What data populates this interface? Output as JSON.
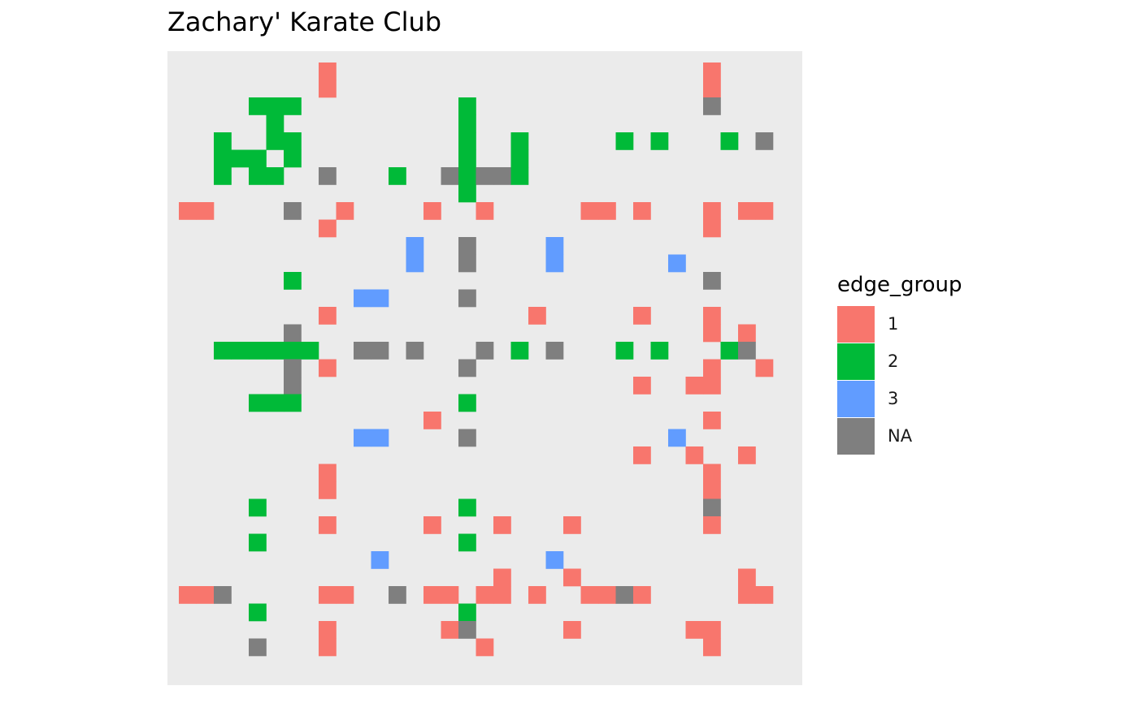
{
  "chart_data": {
    "type": "heatmap",
    "title": "Zachary' Karate Club",
    "xlabel": "",
    "ylabel": "",
    "n": 34,
    "legend": {
      "title": "edge_group",
      "placement": "right",
      "entries": [
        {
          "label": "1",
          "color": "#F8766D"
        },
        {
          "label": "2",
          "color": "#00BA38"
        },
        {
          "label": "3",
          "color": "#619CFF"
        },
        {
          "label": "NA",
          "color": "#7F7F7F"
        }
      ]
    },
    "panel_background": "#EBEBEB",
    "grid": false,
    "cells": [
      {
        "row": 1,
        "col": 9,
        "group": "1"
      },
      {
        "row": 1,
        "col": 31,
        "group": "1"
      },
      {
        "row": 2,
        "col": 9,
        "group": "1"
      },
      {
        "row": 2,
        "col": 31,
        "group": "1"
      },
      {
        "row": 3,
        "col": 5,
        "group": "2"
      },
      {
        "row": 3,
        "col": 6,
        "group": "2"
      },
      {
        "row": 3,
        "col": 7,
        "group": "2"
      },
      {
        "row": 3,
        "col": 17,
        "group": "2"
      },
      {
        "row": 3,
        "col": 31,
        "group": "NA"
      },
      {
        "row": 4,
        "col": 6,
        "group": "2"
      },
      {
        "row": 4,
        "col": 17,
        "group": "2"
      },
      {
        "row": 5,
        "col": 3,
        "group": "2"
      },
      {
        "row": 5,
        "col": 6,
        "group": "2"
      },
      {
        "row": 5,
        "col": 7,
        "group": "2"
      },
      {
        "row": 5,
        "col": 17,
        "group": "2"
      },
      {
        "row": 5,
        "col": 20,
        "group": "2"
      },
      {
        "row": 5,
        "col": 26,
        "group": "2"
      },
      {
        "row": 5,
        "col": 28,
        "group": "2"
      },
      {
        "row": 5,
        "col": 32,
        "group": "2"
      },
      {
        "row": 5,
        "col": 34,
        "group": "NA"
      },
      {
        "row": 6,
        "col": 3,
        "group": "2"
      },
      {
        "row": 6,
        "col": 4,
        "group": "2"
      },
      {
        "row": 6,
        "col": 5,
        "group": "2"
      },
      {
        "row": 6,
        "col": 7,
        "group": "2"
      },
      {
        "row": 6,
        "col": 17,
        "group": "2"
      },
      {
        "row": 6,
        "col": 20,
        "group": "2"
      },
      {
        "row": 7,
        "col": 3,
        "group": "2"
      },
      {
        "row": 7,
        "col": 5,
        "group": "2"
      },
      {
        "row": 7,
        "col": 6,
        "group": "2"
      },
      {
        "row": 7,
        "col": 9,
        "group": "NA"
      },
      {
        "row": 7,
        "col": 13,
        "group": "2"
      },
      {
        "row": 7,
        "col": 16,
        "group": "NA"
      },
      {
        "row": 7,
        "col": 17,
        "group": "2"
      },
      {
        "row": 7,
        "col": 18,
        "group": "NA"
      },
      {
        "row": 7,
        "col": 19,
        "group": "NA"
      },
      {
        "row": 7,
        "col": 20,
        "group": "2"
      },
      {
        "row": 8,
        "col": 17,
        "group": "2"
      },
      {
        "row": 9,
        "col": 1,
        "group": "1"
      },
      {
        "row": 9,
        "col": 2,
        "group": "1"
      },
      {
        "row": 9,
        "col": 7,
        "group": "NA"
      },
      {
        "row": 9,
        "col": 10,
        "group": "1"
      },
      {
        "row": 9,
        "col": 15,
        "group": "1"
      },
      {
        "row": 9,
        "col": 18,
        "group": "1"
      },
      {
        "row": 9,
        "col": 24,
        "group": "1"
      },
      {
        "row": 9,
        "col": 25,
        "group": "1"
      },
      {
        "row": 9,
        "col": 27,
        "group": "1"
      },
      {
        "row": 9,
        "col": 31,
        "group": "1"
      },
      {
        "row": 9,
        "col": 33,
        "group": "1"
      },
      {
        "row": 9,
        "col": 34,
        "group": "1"
      },
      {
        "row": 10,
        "col": 9,
        "group": "1"
      },
      {
        "row": 10,
        "col": 31,
        "group": "1"
      },
      {
        "row": 11,
        "col": 14,
        "group": "3"
      },
      {
        "row": 11,
        "col": 17,
        "group": "NA"
      },
      {
        "row": 11,
        "col": 22,
        "group": "3"
      },
      {
        "row": 12,
        "col": 14,
        "group": "3"
      },
      {
        "row": 12,
        "col": 17,
        "group": "NA"
      },
      {
        "row": 12,
        "col": 22,
        "group": "3"
      },
      {
        "row": 12,
        "col": 29,
        "group": "3"
      },
      {
        "row": 13,
        "col": 7,
        "group": "2"
      },
      {
        "row": 13,
        "col": 31,
        "group": "NA"
      },
      {
        "row": 14,
        "col": 11,
        "group": "3"
      },
      {
        "row": 14,
        "col": 12,
        "group": "3"
      },
      {
        "row": 14,
        "col": 17,
        "group": "NA"
      },
      {
        "row": 15,
        "col": 9,
        "group": "1"
      },
      {
        "row": 15,
        "col": 21,
        "group": "1"
      },
      {
        "row": 15,
        "col": 27,
        "group": "1"
      },
      {
        "row": 15,
        "col": 31,
        "group": "1"
      },
      {
        "row": 16,
        "col": 7,
        "group": "NA"
      },
      {
        "row": 16,
        "col": 31,
        "group": "1"
      },
      {
        "row": 16,
        "col": 33,
        "group": "1"
      },
      {
        "row": 17,
        "col": 3,
        "group": "2"
      },
      {
        "row": 17,
        "col": 4,
        "group": "2"
      },
      {
        "row": 17,
        "col": 5,
        "group": "2"
      },
      {
        "row": 17,
        "col": 6,
        "group": "2"
      },
      {
        "row": 17,
        "col": 7,
        "group": "2"
      },
      {
        "row": 17,
        "col": 8,
        "group": "2"
      },
      {
        "row": 17,
        "col": 11,
        "group": "NA"
      },
      {
        "row": 17,
        "col": 12,
        "group": "NA"
      },
      {
        "row": 17,
        "col": 14,
        "group": "NA"
      },
      {
        "row": 17,
        "col": 18,
        "group": "NA"
      },
      {
        "row": 17,
        "col": 20,
        "group": "2"
      },
      {
        "row": 17,
        "col": 22,
        "group": "NA"
      },
      {
        "row": 17,
        "col": 26,
        "group": "2"
      },
      {
        "row": 17,
        "col": 28,
        "group": "2"
      },
      {
        "row": 17,
        "col": 32,
        "group": "2"
      },
      {
        "row": 17,
        "col": 33,
        "group": "NA"
      },
      {
        "row": 18,
        "col": 7,
        "group": "NA"
      },
      {
        "row": 18,
        "col": 9,
        "group": "1"
      },
      {
        "row": 18,
        "col": 17,
        "group": "NA"
      },
      {
        "row": 18,
        "col": 31,
        "group": "1"
      },
      {
        "row": 18,
        "col": 34,
        "group": "1"
      },
      {
        "row": 19,
        "col": 7,
        "group": "NA"
      },
      {
        "row": 19,
        "col": 27,
        "group": "1"
      },
      {
        "row": 19,
        "col": 30,
        "group": "1"
      },
      {
        "row": 19,
        "col": 31,
        "group": "1"
      },
      {
        "row": 20,
        "col": 5,
        "group": "2"
      },
      {
        "row": 20,
        "col": 6,
        "group": "2"
      },
      {
        "row": 20,
        "col": 7,
        "group": "2"
      },
      {
        "row": 20,
        "col": 17,
        "group": "2"
      },
      {
        "row": 21,
        "col": 15,
        "group": "1"
      },
      {
        "row": 21,
        "col": 31,
        "group": "1"
      },
      {
        "row": 22,
        "col": 11,
        "group": "3"
      },
      {
        "row": 22,
        "col": 12,
        "group": "3"
      },
      {
        "row": 22,
        "col": 17,
        "group": "NA"
      },
      {
        "row": 22,
        "col": 29,
        "group": "3"
      },
      {
        "row": 23,
        "col": 27,
        "group": "1"
      },
      {
        "row": 23,
        "col": 30,
        "group": "1"
      },
      {
        "row": 23,
        "col": 33,
        "group": "1"
      },
      {
        "row": 24,
        "col": 9,
        "group": "1"
      },
      {
        "row": 24,
        "col": 31,
        "group": "1"
      },
      {
        "row": 25,
        "col": 9,
        "group": "1"
      },
      {
        "row": 25,
        "col": 31,
        "group": "1"
      },
      {
        "row": 26,
        "col": 5,
        "group": "2"
      },
      {
        "row": 26,
        "col": 17,
        "group": "2"
      },
      {
        "row": 26,
        "col": 31,
        "group": "NA"
      },
      {
        "row": 27,
        "col": 9,
        "group": "1"
      },
      {
        "row": 27,
        "col": 15,
        "group": "1"
      },
      {
        "row": 27,
        "col": 19,
        "group": "1"
      },
      {
        "row": 27,
        "col": 23,
        "group": "1"
      },
      {
        "row": 27,
        "col": 31,
        "group": "1"
      },
      {
        "row": 28,
        "col": 5,
        "group": "2"
      },
      {
        "row": 28,
        "col": 17,
        "group": "2"
      },
      {
        "row": 29,
        "col": 12,
        "group": "3"
      },
      {
        "row": 29,
        "col": 22,
        "group": "3"
      },
      {
        "row": 30,
        "col": 19,
        "group": "1"
      },
      {
        "row": 30,
        "col": 23,
        "group": "1"
      },
      {
        "row": 30,
        "col": 33,
        "group": "1"
      },
      {
        "row": 31,
        "col": 1,
        "group": "1"
      },
      {
        "row": 31,
        "col": 2,
        "group": "1"
      },
      {
        "row": 31,
        "col": 3,
        "group": "NA"
      },
      {
        "row": 31,
        "col": 9,
        "group": "1"
      },
      {
        "row": 31,
        "col": 10,
        "group": "1"
      },
      {
        "row": 31,
        "col": 13,
        "group": "NA"
      },
      {
        "row": 31,
        "col": 15,
        "group": "1"
      },
      {
        "row": 31,
        "col": 16,
        "group": "1"
      },
      {
        "row": 31,
        "col": 18,
        "group": "1"
      },
      {
        "row": 31,
        "col": 19,
        "group": "1"
      },
      {
        "row": 31,
        "col": 21,
        "group": "1"
      },
      {
        "row": 31,
        "col": 24,
        "group": "1"
      },
      {
        "row": 31,
        "col": 25,
        "group": "1"
      },
      {
        "row": 31,
        "col": 26,
        "group": "NA"
      },
      {
        "row": 31,
        "col": 27,
        "group": "1"
      },
      {
        "row": 31,
        "col": 33,
        "group": "1"
      },
      {
        "row": 31,
        "col": 34,
        "group": "1"
      },
      {
        "row": 32,
        "col": 5,
        "group": "2"
      },
      {
        "row": 32,
        "col": 17,
        "group": "2"
      },
      {
        "row": 33,
        "col": 9,
        "group": "1"
      },
      {
        "row": 33,
        "col": 16,
        "group": "1"
      },
      {
        "row": 33,
        "col": 17,
        "group": "NA"
      },
      {
        "row": 33,
        "col": 23,
        "group": "1"
      },
      {
        "row": 33,
        "col": 30,
        "group": "1"
      },
      {
        "row": 33,
        "col": 31,
        "group": "1"
      },
      {
        "row": 34,
        "col": 5,
        "group": "NA"
      },
      {
        "row": 34,
        "col": 9,
        "group": "1"
      },
      {
        "row": 34,
        "col": 18,
        "group": "1"
      },
      {
        "row": 34,
        "col": 31,
        "group": "1"
      }
    ]
  }
}
